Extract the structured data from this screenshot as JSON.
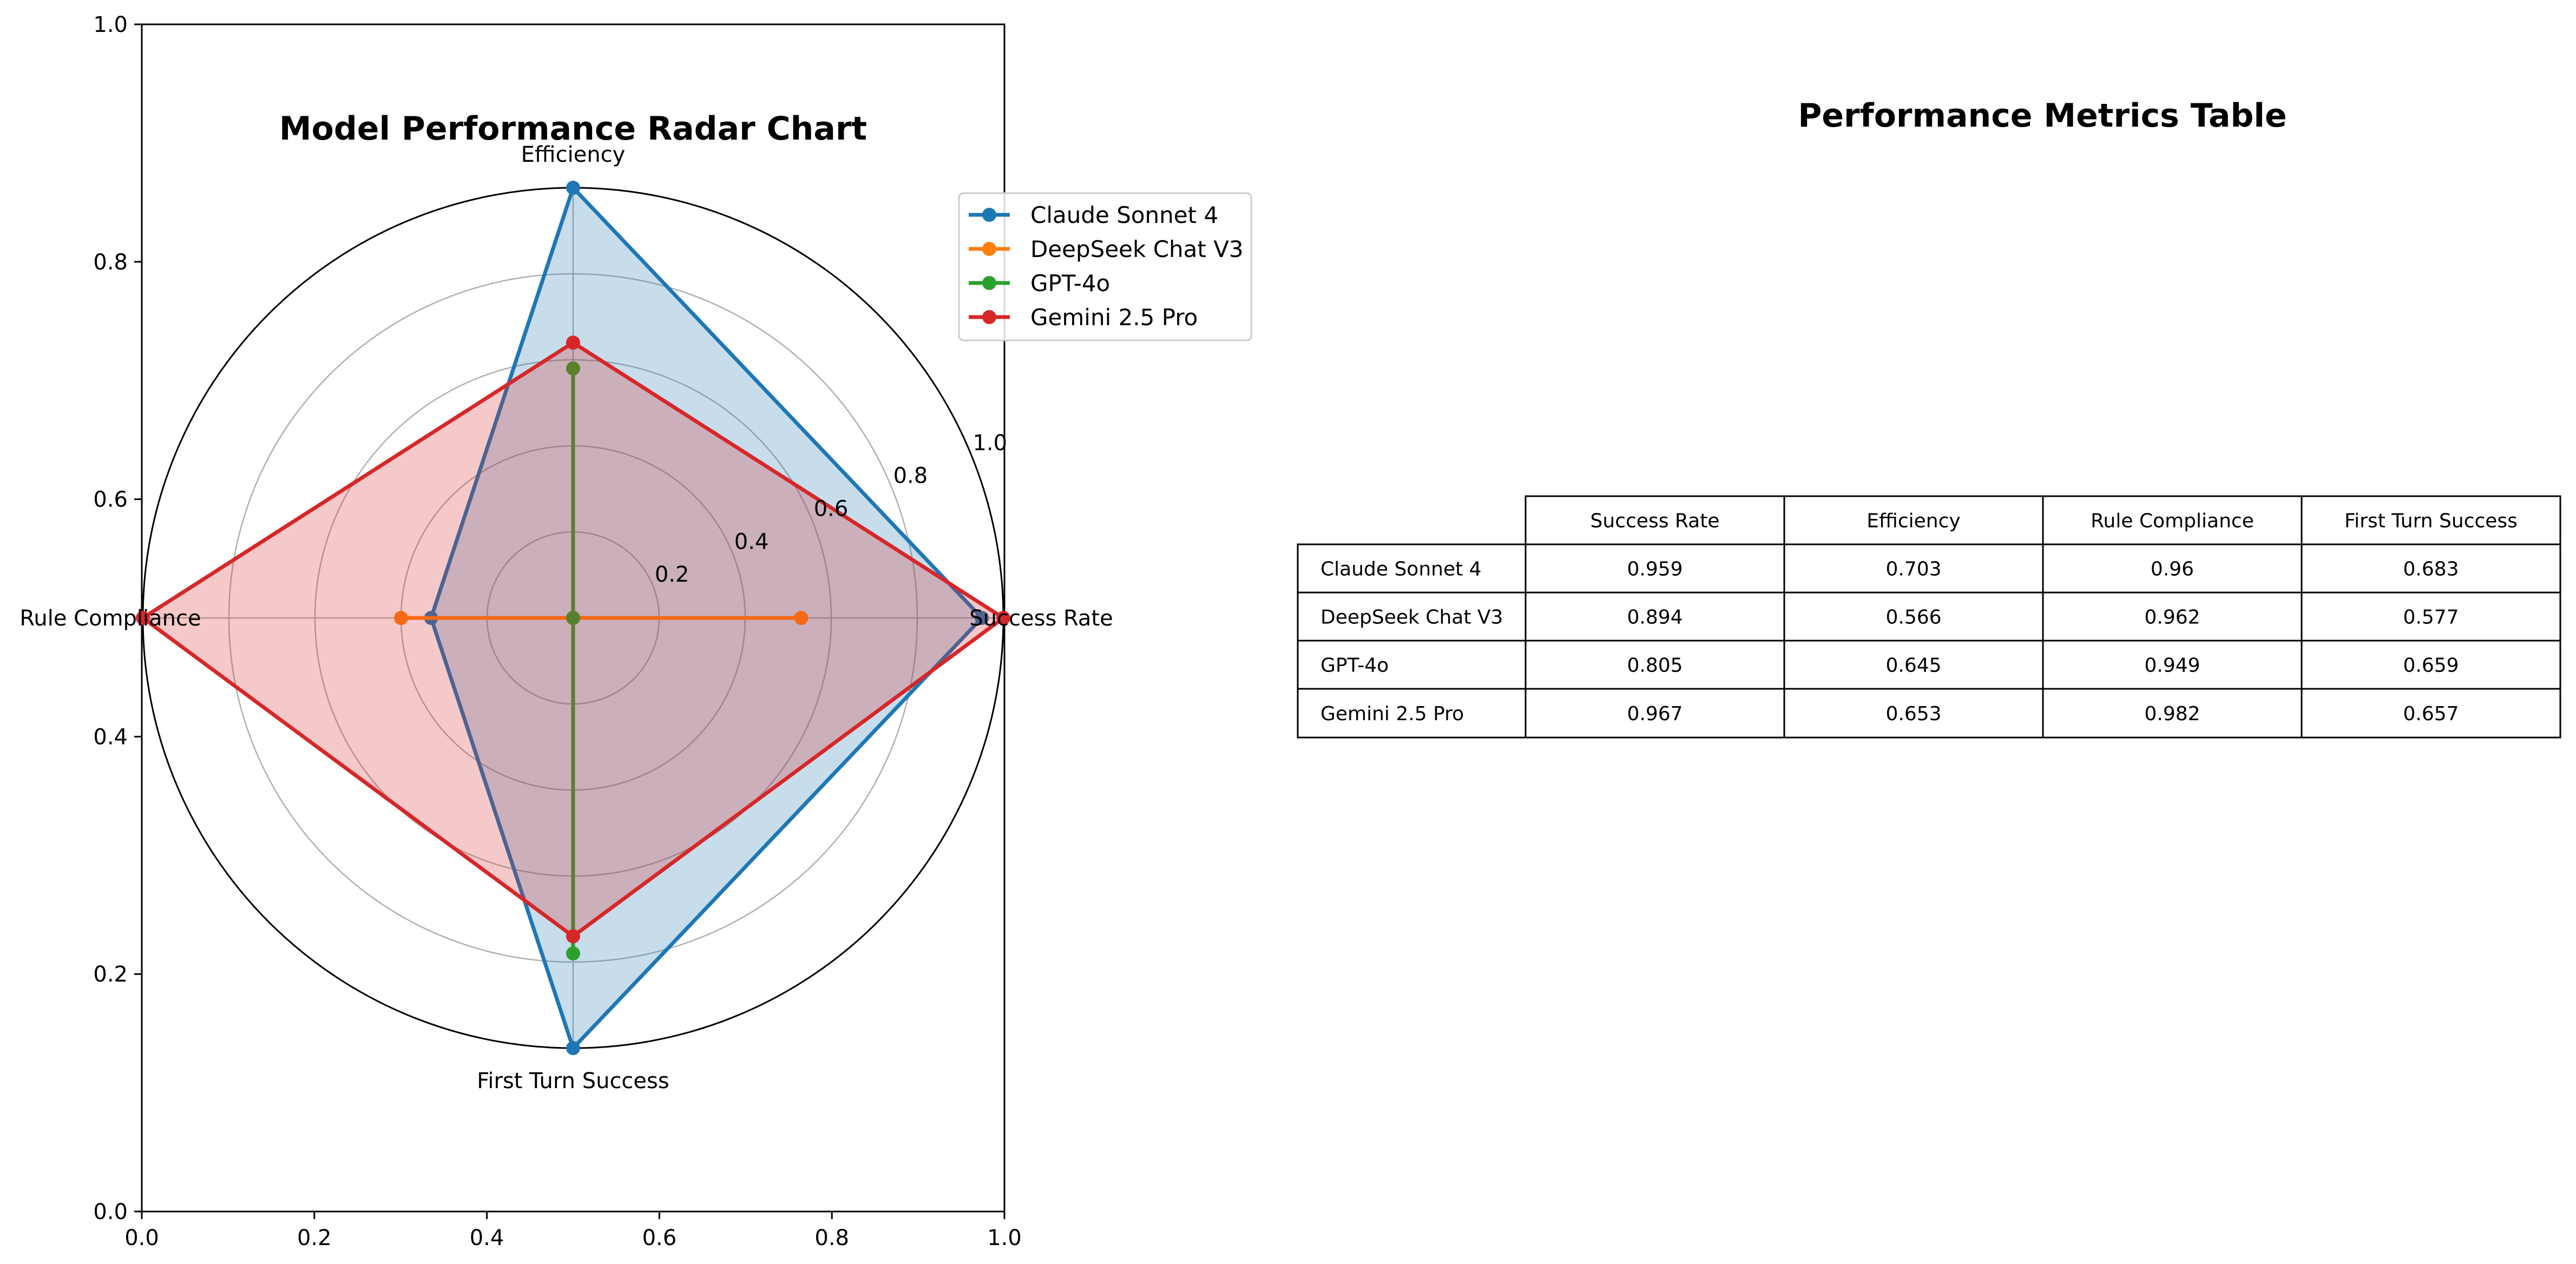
{
  "chart_data": [
    {
      "type": "radar",
      "title": "Model Performance Radar Chart",
      "axes": [
        "Success Rate",
        "Efficiency",
        "Rule Compliance",
        "First Turn Success"
      ],
      "radial_ticks": [
        "0.2",
        "0.4",
        "0.6",
        "0.8",
        "1.0"
      ],
      "radial_range": [
        0,
        1
      ],
      "frame_x_ticks": [
        "0.0",
        "0.2",
        "0.4",
        "0.6",
        "0.8",
        "1.0"
      ],
      "frame_y_ticks": [
        "0.0",
        "0.2",
        "0.4",
        "0.6",
        "0.8",
        "1.0"
      ],
      "legend_position": "upper right (outside)",
      "series": [
        {
          "name": "Claude Sonnet 4",
          "color": "#1f77b4",
          "values": [
            0.95,
            1.0,
            0.33,
            1.0
          ],
          "fill": true
        },
        {
          "name": "DeepSeek Chat V3",
          "color": "#ff7f0e",
          "values": [
            0.53,
            0.0,
            0.4,
            0.0
          ],
          "fill": false
        },
        {
          "name": "GPT-4o",
          "color": "#2ca02c",
          "values": [
            0.0,
            0.58,
            0.0,
            0.78
          ],
          "fill": false
        },
        {
          "name": "Gemini 2.5 Pro",
          "color": "#d62728",
          "values": [
            1.0,
            0.64,
            1.0,
            0.74
          ],
          "fill": true
        }
      ]
    },
    {
      "type": "table",
      "title": "Performance Metrics Table",
      "columns": [
        "Success Rate",
        "Efficiency",
        "Rule Compliance",
        "First Turn Success"
      ],
      "rows": [
        {
          "label": "Claude Sonnet 4",
          "values": [
            "0.959",
            "0.703",
            "0.96",
            "0.683"
          ]
        },
        {
          "label": "DeepSeek Chat V3",
          "values": [
            "0.894",
            "0.566",
            "0.962",
            "0.577"
          ]
        },
        {
          "label": "GPT-4o",
          "values": [
            "0.805",
            "0.645",
            "0.949",
            "0.659"
          ]
        },
        {
          "label": "Gemini 2.5 Pro",
          "values": [
            "0.967",
            "0.653",
            "0.982",
            "0.657"
          ]
        }
      ]
    }
  ]
}
